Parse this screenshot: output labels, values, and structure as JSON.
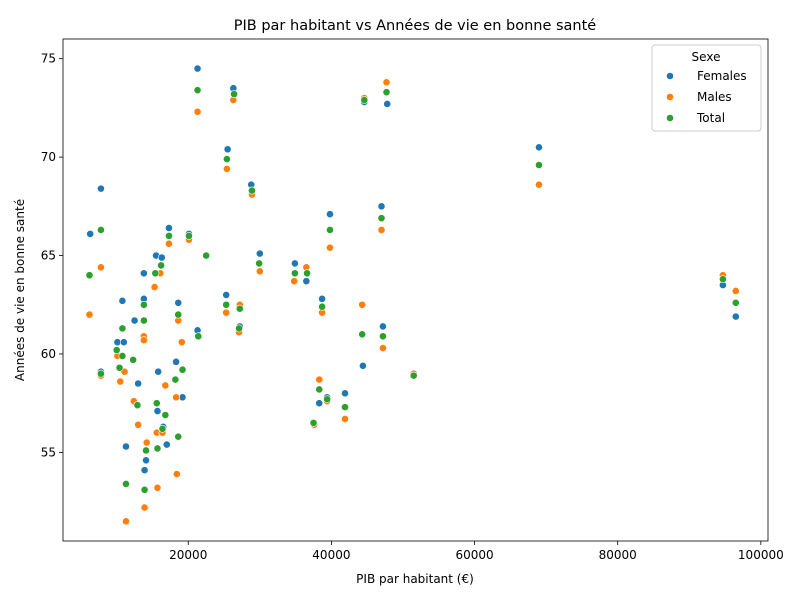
{
  "chart_data": {
    "type": "scatter",
    "title": "PIB par habitant vs Années de vie en bonne santé",
    "xlabel": "PIB par habitant (€)",
    "ylabel": "Années de vie en bonne santé",
    "xlim": [
      2500,
      101000
    ],
    "ylim": [
      50.5,
      76
    ],
    "xticks": [
      20000,
      40000,
      60000,
      80000,
      100000
    ],
    "xtick_labels": [
      "20000",
      "40000",
      "60000",
      "80000",
      "100000"
    ],
    "yticks": [
      55,
      60,
      65,
      70,
      75
    ],
    "ytick_labels": [
      "55",
      "60",
      "65",
      "70",
      "75"
    ],
    "grid": false,
    "legend": {
      "title": "Sexe",
      "placement": "top-right"
    },
    "series": [
      {
        "name": "Females",
        "color": "#1f77b4",
        "points": [
          [
            6300,
            66.1
          ],
          [
            7800,
            68.4
          ],
          [
            7800,
            59.1
          ],
          [
            10100,
            60.6
          ],
          [
            10800,
            62.7
          ],
          [
            11000,
            60.6
          ],
          [
            11300,
            55.3
          ],
          [
            12500,
            61.7
          ],
          [
            13000,
            58.5
          ],
          [
            13800,
            64.1
          ],
          [
            13800,
            62.8
          ],
          [
            13900,
            54.1
          ],
          [
            14100,
            54.6
          ],
          [
            15500,
            65.0
          ],
          [
            15700,
            57.1
          ],
          [
            15800,
            59.1
          ],
          [
            16300,
            64.9
          ],
          [
            16500,
            56.3
          ],
          [
            17000,
            55.4
          ],
          [
            17300,
            66.4
          ],
          [
            18300,
            59.6
          ],
          [
            18600,
            62.6
          ],
          [
            19200,
            57.8
          ],
          [
            20100,
            66.1
          ],
          [
            21300,
            61.2
          ],
          [
            21300,
            74.5
          ],
          [
            25300,
            63.0
          ],
          [
            25500,
            70.4
          ],
          [
            26300,
            73.5
          ],
          [
            27200,
            61.4
          ],
          [
            27200,
            62.4
          ],
          [
            28800,
            68.6
          ],
          [
            30000,
            65.1
          ],
          [
            34900,
            64.6
          ],
          [
            36500,
            63.7
          ],
          [
            38300,
            57.5
          ],
          [
            38700,
            62.8
          ],
          [
            39400,
            57.8
          ],
          [
            39800,
            67.1
          ],
          [
            41900,
            58.0
          ],
          [
            44400,
            59.4
          ],
          [
            44600,
            72.8
          ],
          [
            47000,
            67.5
          ],
          [
            47200,
            61.4
          ],
          [
            47800,
            72.7
          ],
          [
            51500,
            58.9
          ],
          [
            69000,
            70.5
          ],
          [
            94700,
            63.5
          ],
          [
            96500,
            61.9
          ]
        ]
      },
      {
        "name": "Males",
        "color": "#ff7f0e",
        "points": [
          [
            6200,
            62.0
          ],
          [
            7800,
            64.4
          ],
          [
            7800,
            58.9
          ],
          [
            10100,
            59.9
          ],
          [
            10500,
            58.6
          ],
          [
            11100,
            59.1
          ],
          [
            11300,
            51.5
          ],
          [
            12400,
            57.6
          ],
          [
            13000,
            56.4
          ],
          [
            13800,
            60.9
          ],
          [
            13800,
            60.7
          ],
          [
            13900,
            52.2
          ],
          [
            14200,
            55.5
          ],
          [
            15300,
            63.4
          ],
          [
            15600,
            56.0
          ],
          [
            15700,
            53.2
          ],
          [
            16100,
            64.1
          ],
          [
            16400,
            56.0
          ],
          [
            16800,
            58.4
          ],
          [
            17300,
            65.6
          ],
          [
            18300,
            57.8
          ],
          [
            18400,
            53.9
          ],
          [
            18600,
            61.7
          ],
          [
            19100,
            60.6
          ],
          [
            20100,
            65.8
          ],
          [
            21300,
            72.3
          ],
          [
            21500,
            60.9
          ],
          [
            25300,
            62.1
          ],
          [
            25400,
            69.4
          ],
          [
            26300,
            72.9
          ],
          [
            27100,
            61.1
          ],
          [
            27200,
            62.5
          ],
          [
            28900,
            68.1
          ],
          [
            30000,
            64.2
          ],
          [
            34800,
            63.7
          ],
          [
            36500,
            64.4
          ],
          [
            37600,
            56.4
          ],
          [
            38300,
            58.7
          ],
          [
            38700,
            62.1
          ],
          [
            39400,
            57.6
          ],
          [
            39800,
            65.4
          ],
          [
            41900,
            56.7
          ],
          [
            44300,
            62.5
          ],
          [
            44600,
            73.0
          ],
          [
            47000,
            66.3
          ],
          [
            47200,
            60.3
          ],
          [
            47700,
            73.8
          ],
          [
            51500,
            59.0
          ],
          [
            69000,
            68.6
          ],
          [
            94700,
            64.0
          ],
          [
            96500,
            63.2
          ]
        ]
      },
      {
        "name": "Total",
        "color": "#2ca02c",
        "points": [
          [
            6200,
            64.0
          ],
          [
            7800,
            66.3
          ],
          [
            7800,
            59.0
          ],
          [
            10000,
            60.2
          ],
          [
            10400,
            59.3
          ],
          [
            10800,
            61.3
          ],
          [
            10800,
            59.9
          ],
          [
            11300,
            53.4
          ],
          [
            12300,
            59.7
          ],
          [
            12900,
            57.4
          ],
          [
            13800,
            62.5
          ],
          [
            13800,
            61.7
          ],
          [
            13900,
            53.1
          ],
          [
            14100,
            55.1
          ],
          [
            15400,
            64.1
          ],
          [
            15600,
            57.5
          ],
          [
            15700,
            55.2
          ],
          [
            16200,
            64.5
          ],
          [
            16400,
            56.2
          ],
          [
            16800,
            56.9
          ],
          [
            17300,
            66.0
          ],
          [
            18200,
            58.7
          ],
          [
            18600,
            62.0
          ],
          [
            18600,
            55.8
          ],
          [
            19200,
            59.2
          ],
          [
            20100,
            66.0
          ],
          [
            21300,
            73.4
          ],
          [
            21400,
            60.9
          ],
          [
            22500,
            65.0
          ],
          [
            25300,
            62.5
          ],
          [
            25400,
            69.9
          ],
          [
            26400,
            73.2
          ],
          [
            27100,
            61.3
          ],
          [
            27200,
            62.3
          ],
          [
            28900,
            68.3
          ],
          [
            29900,
            64.6
          ],
          [
            34900,
            64.1
          ],
          [
            36600,
            64.1
          ],
          [
            37500,
            56.5
          ],
          [
            38300,
            58.2
          ],
          [
            38700,
            62.4
          ],
          [
            39400,
            57.7
          ],
          [
            39800,
            66.3
          ],
          [
            41900,
            57.3
          ],
          [
            44300,
            61.0
          ],
          [
            44600,
            72.9
          ],
          [
            47000,
            66.9
          ],
          [
            47200,
            60.9
          ],
          [
            47700,
            73.3
          ],
          [
            51500,
            58.9
          ],
          [
            69000,
            69.6
          ],
          [
            94700,
            63.8
          ],
          [
            96500,
            62.6
          ]
        ]
      }
    ]
  }
}
